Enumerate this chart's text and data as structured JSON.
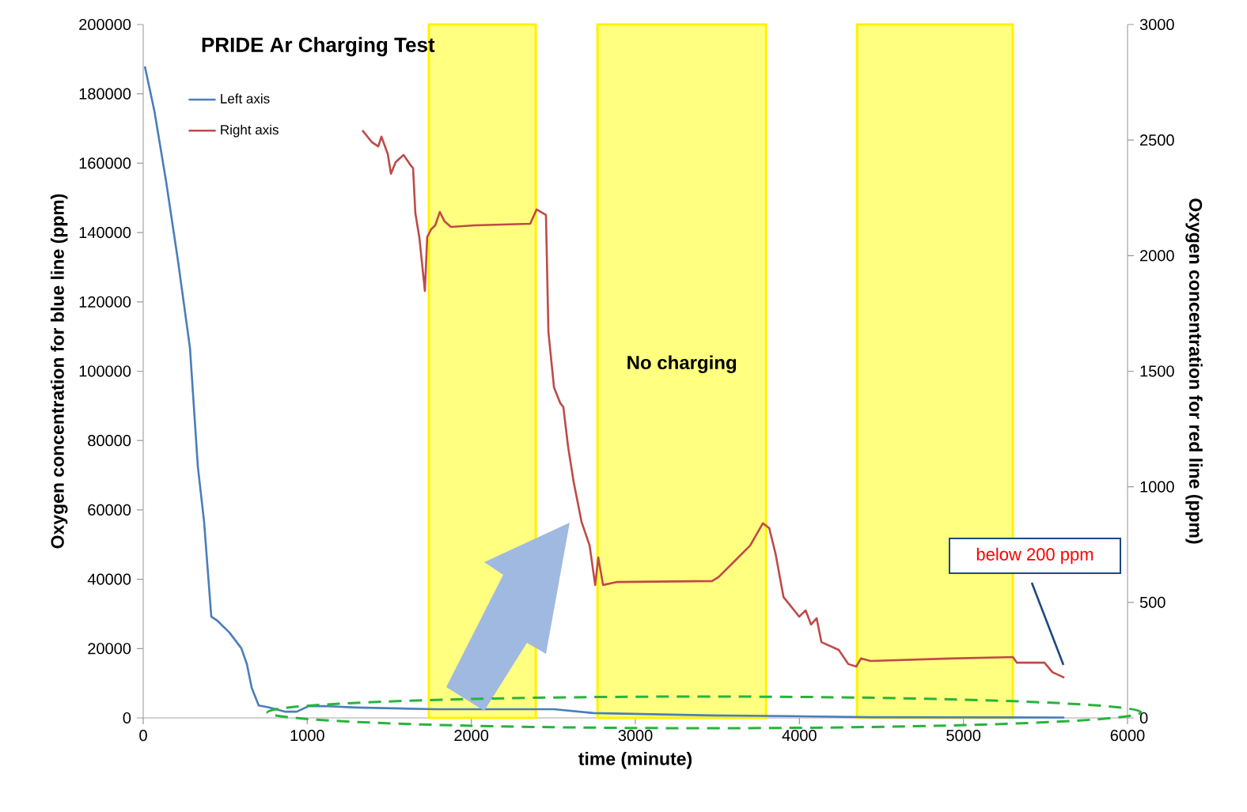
{
  "chart_data": {
    "type": "line",
    "title": "PRIDE Ar Charging Test",
    "xlabel": "time (minute)",
    "ylabel": "Oxygen concentration for blue line (ppm)",
    "y2label": "Oxygen concentration for red line (ppm)",
    "xlim": [
      0,
      6000
    ],
    "xticks": [
      0,
      1000,
      2000,
      3000,
      4000,
      5000,
      6000
    ],
    "ylim": [
      0,
      200000
    ],
    "yticks": [
      0,
      20000,
      40000,
      60000,
      80000,
      100000,
      120000,
      140000,
      160000,
      180000,
      200000
    ],
    "y2lim": [
      0,
      3000
    ],
    "y2ticks": [
      0,
      500,
      1000,
      1500,
      2000,
      2500,
      3000
    ],
    "legend": "top left",
    "marker": "none",
    "line_style": "solid",
    "grid": false,
    "series": [
      {
        "name": "Left axis",
        "color": "#4a7ebb",
        "x": [
          10,
          68,
          140,
          212,
          285,
          333,
          371,
          415,
          453,
          526,
          598,
          632,
          661,
          704,
          767,
          863,
          936,
          1008,
          1105,
          1298,
          1780,
          2504,
          2745,
          3468,
          3951,
          4433,
          5615
        ],
        "values": [
          187900,
          175100,
          154600,
          131800,
          106700,
          72500,
          56600,
          29200,
          28000,
          24600,
          20100,
          15500,
          8700,
          3600,
          3000,
          1800,
          1800,
          3400,
          3400,
          3000,
          2500,
          2500,
          1400,
          700,
          500,
          200,
          100
        ]
      },
      {
        "name": "Right axis",
        "color": "#be4b48",
        "axis": "y2",
        "x": [
          1336,
          1394,
          1433,
          1452,
          1491,
          1510,
          1539,
          1587,
          1626,
          1645,
          1659,
          1683,
          1717,
          1731,
          1755,
          1780,
          1808,
          1837,
          1876,
          2021,
          2359,
          2398,
          2455,
          2470,
          2504,
          2542,
          2561,
          2590,
          2624,
          2672,
          2721,
          2755,
          2774,
          2803,
          2890,
          3468,
          3507,
          3613,
          3700,
          3777,
          3816,
          3854,
          3903,
          3999,
          4038,
          4071,
          4105,
          4134,
          4240,
          4298,
          4346,
          4375,
          4433,
          4916,
          5301,
          5325,
          5494,
          5542,
          5615
        ],
        "values": [
          2542,
          2491,
          2473,
          2515,
          2439,
          2354,
          2405,
          2436,
          2395,
          2378,
          2183,
          2080,
          1847,
          2080,
          2114,
          2131,
          2189,
          2148,
          2124,
          2131,
          2138,
          2200,
          2176,
          1669,
          1430,
          1362,
          1345,
          1173,
          1020,
          848,
          746,
          575,
          694,
          575,
          588,
          592,
          609,
          684,
          746,
          842,
          821,
          712,
          523,
          438,
          465,
          404,
          431,
          328,
          294,
          233,
          222,
          257,
          246,
          257,
          263,
          239,
          239,
          198,
          174
        ]
      }
    ],
    "bands": [
      {
        "axis": "x",
        "from": 1741,
        "to": 2393,
        "color": "#ffff80"
      },
      {
        "axis": "x",
        "from": 2769,
        "to": 3797,
        "color": "#ffff80",
        "label": "No charging"
      },
      {
        "axis": "x",
        "from": 4351,
        "to": 5301,
        "color": "#ffff80"
      }
    ],
    "annotations": [
      "below 200 ppm"
    ]
  }
}
